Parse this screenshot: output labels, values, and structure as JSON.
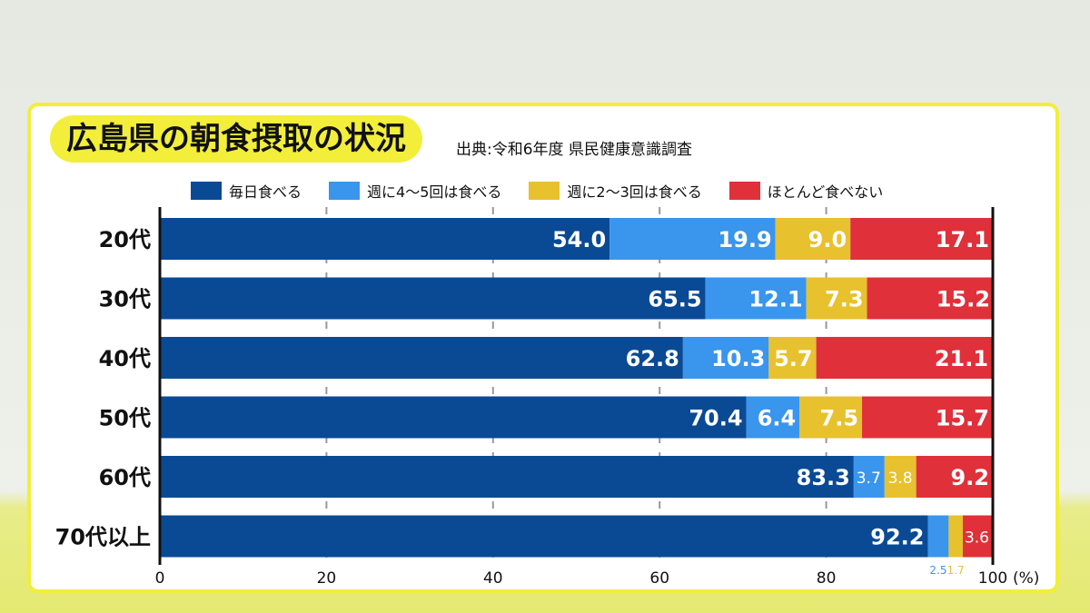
{
  "chart_data": {
    "type": "bar",
    "stacked": true,
    "orientation": "horizontal",
    "title": "広島県の朝食摂取の状況",
    "source": "出典:令和6年度 県民健康意識調査",
    "categories": [
      "20代",
      "30代",
      "40代",
      "50代",
      "60代",
      "70代以上"
    ],
    "series": [
      {
        "name": "毎日食べる",
        "color": "#0a4a94",
        "values": [
          54.0,
          65.5,
          62.8,
          70.4,
          83.3,
          92.2
        ]
      },
      {
        "name": "週に4〜5回は食べる",
        "color": "#3a95ec",
        "values": [
          19.9,
          12.1,
          10.3,
          6.4,
          3.7,
          2.5
        ]
      },
      {
        "name": "週に2〜3回は食べる",
        "color": "#e8c12e",
        "values": [
          9.0,
          7.3,
          5.7,
          7.5,
          3.8,
          1.7
        ]
      },
      {
        "name": "ほとんど食べない",
        "color": "#e0303a",
        "values": [
          17.1,
          15.2,
          21.1,
          15.7,
          9.2,
          3.6
        ]
      }
    ],
    "xticks": [
      "0",
      "20",
      "40",
      "60",
      "80",
      "100"
    ],
    "xunit": "(%)",
    "xlim": [
      0,
      100
    ],
    "grid": true,
    "legend": "top"
  }
}
